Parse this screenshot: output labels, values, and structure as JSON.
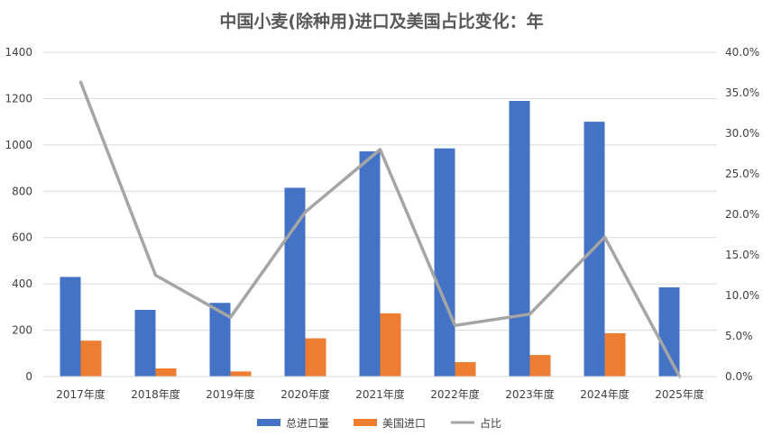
{
  "chart_data": {
    "type": "bar",
    "title": "中国小麦(除种用)进口及美国占比变化：年",
    "categories": [
      "2017年度",
      "2018年度",
      "2019年度",
      "2020年度",
      "2021年度",
      "2022年度",
      "2023年度",
      "2024年度",
      "2025年度"
    ],
    "series": [
      {
        "name": "总进口量",
        "type": "bar",
        "axis": "left",
        "color": "#4472C4",
        "values": [
          430,
          288,
          318,
          815,
          972,
          985,
          1190,
          1100,
          385
        ]
      },
      {
        "name": "美国进口",
        "type": "bar",
        "axis": "left",
        "color": "#ED7D31",
        "values": [
          155,
          35,
          22,
          165,
          273,
          62,
          93,
          187,
          0
        ]
      },
      {
        "name": "占比",
        "type": "line",
        "axis": "right",
        "color": "#A5A5A5",
        "values": [
          36.3,
          12.5,
          7.3,
          20.3,
          28.0,
          6.3,
          7.7,
          17.2,
          0.0
        ]
      }
    ],
    "y_left": {
      "min": 0,
      "max": 1400,
      "ticks": [
        "0",
        "200",
        "400",
        "600",
        "800",
        "1000",
        "1200",
        "1400"
      ]
    },
    "y_right": {
      "min": 0,
      "max": 40,
      "ticks": [
        "0.0%",
        "5.0%",
        "10.0%",
        "15.0%",
        "20.0%",
        "25.0%",
        "30.0%",
        "35.0%",
        "40.0%"
      ]
    },
    "grid": true,
    "legend_position": "bottom"
  }
}
